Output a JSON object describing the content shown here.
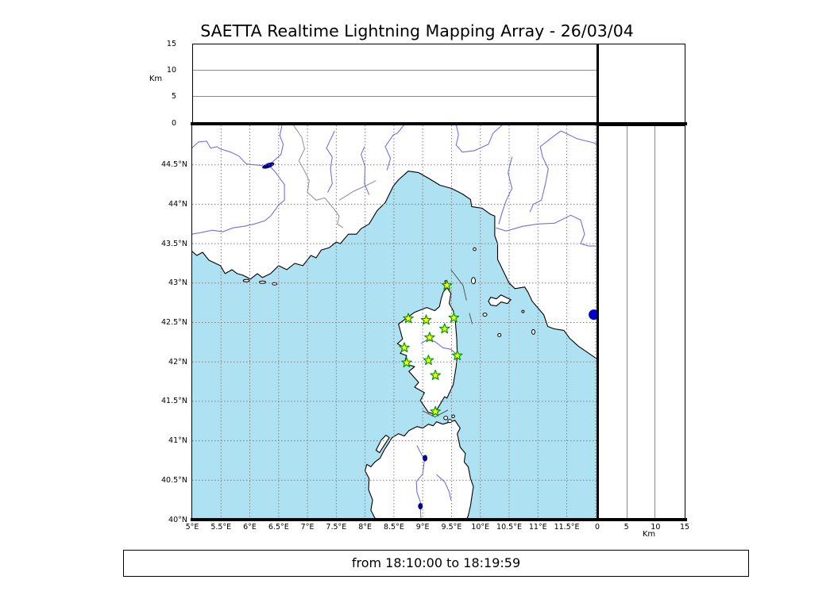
{
  "title": "SAETTA Realtime Lightning Mapping Array - 26/03/04",
  "footer": {
    "text": "from 18:10:00 to 18:19:59"
  },
  "chart_data": {
    "type": "scatter",
    "title": "SAETTA Realtime Lightning Mapping Array - 26/03/04",
    "time_range": "from 18:10:00 to 18:19:59",
    "map_panel": {
      "lon_min": 5.0,
      "lon_max": 12.03,
      "lat_min": 40.0,
      "lat_max": 45.0,
      "lon_tick_values": [
        5,
        5.5,
        6,
        6.5,
        7,
        7.5,
        8,
        8.5,
        9,
        9.5,
        10,
        10.5,
        11,
        11.5
      ],
      "lon_tick_labels": [
        "5°E",
        "5.5°E",
        "6°E",
        "6.5°E",
        "7°E",
        "7.5°E",
        "8°E",
        "8.5°E",
        "9°E",
        "9.5°E",
        "10°E",
        "10.5°E",
        "11°E",
        "11.5°E"
      ],
      "lat_tick_values": [
        40,
        40.5,
        41,
        41.5,
        42,
        42.5,
        43,
        43.5,
        44,
        44.5
      ],
      "lat_tick_labels": [
        "40°N",
        "40.5°N",
        "41°N",
        "41.5°N",
        "42°N",
        "42.5°N",
        "43°N",
        "43.5°N",
        "44°N",
        "44.5°N"
      ],
      "grid_lons": [
        5.5,
        6,
        6.5,
        7,
        7.5,
        8,
        8.5,
        9,
        9.5,
        10,
        10.5,
        11,
        11.5,
        12
      ],
      "grid_lats": [
        40.5,
        41,
        41.5,
        42,
        42.5,
        43,
        43.5,
        44,
        44.5
      ]
    },
    "altitude_panels": {
      "ylabel": "Km",
      "xlabel": "Km",
      "tick_values": [
        0,
        5,
        10,
        15
      ],
      "tick_labels": [
        "0",
        "5",
        "10",
        "15"
      ],
      "range_km": [
        0,
        15
      ],
      "gridlines_km": [
        5,
        10
      ],
      "series": []
    },
    "stations": [
      [
        9.42,
        42.97
      ],
      [
        8.75,
        42.55
      ],
      [
        9.06,
        42.53
      ],
      [
        9.54,
        42.56
      ],
      [
        9.38,
        42.42
      ],
      [
        9.12,
        42.31
      ],
      [
        8.68,
        42.18
      ],
      [
        9.6,
        42.08
      ],
      [
        8.72,
        41.99
      ],
      [
        9.1,
        42.02
      ],
      [
        9.22,
        41.83
      ],
      [
        9.22,
        41.37
      ]
    ],
    "event_point": {
      "lon": 11.97,
      "lat": 42.6,
      "r": 6.5
    }
  },
  "colors": {
    "sea": "#aee1f2",
    "land": "#ffffff",
    "coast": "#000000",
    "river": "#7070e8",
    "border": "#8f8f8f",
    "grid": "#808080",
    "lake": "#000090",
    "route": "#4a4a4a",
    "station_fill": "#ffff00",
    "station_stroke": "#009900",
    "event": "#0000cc",
    "panel_grid": "#8a8a8a"
  },
  "geometry": {
    "land": [
      [
        [
          4.8,
          43.42
        ],
        [
          5.0,
          43.4
        ],
        [
          5.08,
          43.35
        ],
        [
          5.18,
          43.39
        ],
        [
          5.29,
          43.29
        ],
        [
          5.49,
          43.22
        ],
        [
          5.57,
          43.12
        ],
        [
          5.69,
          43.17
        ],
        [
          5.78,
          43.12
        ],
        [
          5.88,
          43.1
        ],
        [
          6.01,
          43.05
        ],
        [
          6.13,
          43.12
        ],
        [
          6.22,
          43.07
        ],
        [
          6.36,
          43.12
        ],
        [
          6.5,
          43.22
        ],
        [
          6.64,
          43.17
        ],
        [
          6.78,
          43.25
        ],
        [
          6.92,
          43.22
        ],
        [
          7.06,
          43.35
        ],
        [
          7.15,
          43.32
        ],
        [
          7.24,
          43.42
        ],
        [
          7.38,
          43.45
        ],
        [
          7.5,
          43.52
        ],
        [
          7.57,
          43.5
        ],
        [
          7.71,
          43.62
        ],
        [
          7.85,
          43.62
        ],
        [
          7.93,
          43.69
        ],
        [
          8.07,
          43.75
        ],
        [
          8.21,
          43.92
        ],
        [
          8.35,
          44.02
        ],
        [
          8.49,
          44.23
        ],
        [
          8.58,
          44.31
        ],
        [
          8.75,
          44.42
        ],
        [
          8.93,
          44.4
        ],
        [
          9.1,
          44.33
        ],
        [
          9.3,
          44.24
        ],
        [
          9.5,
          44.2
        ],
        [
          9.69,
          44.13
        ],
        [
          9.83,
          44.06
        ],
        [
          9.85,
          43.97
        ],
        [
          10.03,
          43.95
        ],
        [
          10.18,
          43.87
        ],
        [
          10.25,
          43.85
        ],
        [
          10.25,
          43.6
        ],
        [
          10.3,
          43.5
        ],
        [
          10.3,
          43.3
        ],
        [
          10.42,
          43.12
        ],
        [
          10.5,
          43.0
        ],
        [
          10.6,
          42.93
        ],
        [
          10.77,
          42.95
        ],
        [
          10.83,
          42.88
        ],
        [
          10.9,
          42.77
        ],
        [
          11.1,
          42.6
        ],
        [
          11.17,
          42.45
        ],
        [
          11.28,
          42.42
        ],
        [
          11.45,
          42.4
        ],
        [
          11.55,
          42.3
        ],
        [
          11.7,
          42.2
        ],
        [
          12.0,
          42.05
        ],
        [
          12.3,
          41.95
        ],
        [
          12.3,
          45.2
        ],
        [
          4.8,
          45.2
        ]
      ],
      [
        [
          9.42,
          42.94
        ],
        [
          9.49,
          42.87
        ],
        [
          9.46,
          42.74
        ],
        [
          9.53,
          42.65
        ],
        [
          9.56,
          42.57
        ],
        [
          9.59,
          42.3
        ],
        [
          9.6,
          42.09
        ],
        [
          9.58,
          41.94
        ],
        [
          9.53,
          41.71
        ],
        [
          9.42,
          41.54
        ],
        [
          9.38,
          41.56
        ],
        [
          9.26,
          41.41
        ],
        [
          9.21,
          41.34
        ],
        [
          9.1,
          41.36
        ],
        [
          8.96,
          41.51
        ],
        [
          9.03,
          41.61
        ],
        [
          8.86,
          41.68
        ],
        [
          8.93,
          41.74
        ],
        [
          8.76,
          41.88
        ],
        [
          8.86,
          41.94
        ],
        [
          8.68,
          41.98
        ],
        [
          8.72,
          42.08
        ],
        [
          8.61,
          42.11
        ],
        [
          8.69,
          42.18
        ],
        [
          8.56,
          42.23
        ],
        [
          8.65,
          42.29
        ],
        [
          8.58,
          42.48
        ],
        [
          8.73,
          42.56
        ],
        [
          8.86,
          42.63
        ],
        [
          9.07,
          42.69
        ],
        [
          9.21,
          42.65
        ],
        [
          9.29,
          42.7
        ],
        [
          9.32,
          42.8
        ],
        [
          9.36,
          42.89
        ]
      ],
      [
        [
          8.19,
          40.0
        ],
        [
          8.17,
          40.02
        ],
        [
          8.1,
          40.12
        ],
        [
          8.13,
          40.25
        ],
        [
          8.06,
          40.38
        ],
        [
          8.07,
          40.52
        ],
        [
          8.0,
          40.62
        ],
        [
          8.03,
          40.7
        ],
        [
          8.1,
          40.67
        ],
        [
          8.17,
          40.73
        ],
        [
          8.26,
          40.78
        ],
        [
          8.33,
          40.88
        ],
        [
          8.4,
          40.96
        ],
        [
          8.47,
          41.04
        ],
        [
          8.58,
          41.09
        ],
        [
          8.68,
          41.06
        ],
        [
          8.76,
          41.13
        ],
        [
          8.9,
          41.18
        ],
        [
          9.0,
          41.16
        ],
        [
          9.1,
          41.21
        ],
        [
          9.18,
          41.19
        ],
        [
          9.24,
          41.24
        ],
        [
          9.35,
          41.21
        ],
        [
          9.44,
          41.23
        ],
        [
          9.56,
          41.26
        ],
        [
          9.65,
          41.16
        ],
        [
          9.6,
          41.09
        ],
        [
          9.65,
          40.92
        ],
        [
          9.74,
          40.84
        ],
        [
          9.72,
          40.73
        ],
        [
          9.79,
          40.67
        ],
        [
          9.83,
          40.52
        ],
        [
          9.88,
          40.42
        ],
        [
          9.83,
          40.18
        ],
        [
          9.79,
          40.05
        ],
        [
          9.76,
          40.0
        ],
        [
          9.76,
          39.8
        ],
        [
          8.19,
          39.8
        ]
      ],
      [
        [
          10.14,
          42.77
        ],
        [
          10.18,
          42.82
        ],
        [
          10.28,
          42.8
        ],
        [
          10.36,
          42.85
        ],
        [
          10.44,
          42.82
        ],
        [
          10.53,
          42.79
        ],
        [
          10.47,
          42.74
        ],
        [
          10.36,
          42.76
        ],
        [
          10.28,
          42.71
        ],
        [
          10.18,
          42.72
        ]
      ],
      [
        [
          8.19,
          40.88
        ],
        [
          8.28,
          41.01
        ],
        [
          8.36,
          41.07
        ],
        [
          8.42,
          41.04
        ],
        [
          8.33,
          40.94
        ],
        [
          8.25,
          40.85
        ]
      ]
    ],
    "island_ellipses": [
      [
        9.88,
        43.03,
        2.5,
        4.0
      ],
      [
        9.9,
        43.43,
        1.8,
        1.8
      ],
      [
        10.08,
        42.6,
        2.5,
        2.0
      ],
      [
        10.33,
        42.34,
        2.0,
        2.0
      ],
      [
        10.74,
        42.64,
        1.5,
        1.5
      ],
      [
        10.92,
        42.38,
        2.0,
        3.0
      ],
      [
        5.94,
        43.03,
        4.0,
        1.5
      ],
      [
        6.22,
        43.01,
        4.0,
        1.5
      ],
      [
        6.43,
        42.99,
        3.0,
        1.5
      ],
      [
        9.4,
        41.29,
        2.5,
        2.2
      ],
      [
        9.47,
        41.25,
        2.5,
        2.0
      ],
      [
        9.53,
        41.31,
        1.8,
        1.8
      ],
      [
        9.4,
        43.02,
        1.2,
        1.2
      ]
    ],
    "rivers": [
      [
        [
          4.99,
          43.62
        ],
        [
          5.15,
          43.64
        ],
        [
          5.35,
          43.67
        ],
        [
          5.53,
          43.65
        ],
        [
          5.71,
          43.7
        ],
        [
          5.9,
          43.72
        ],
        [
          6.08,
          43.75
        ],
        [
          6.26,
          43.79
        ],
        [
          6.36,
          43.85
        ],
        [
          6.5,
          43.99
        ],
        [
          6.6,
          44.05
        ],
        [
          6.6,
          44.25
        ],
        [
          6.43,
          44.42
        ],
        [
          6.32,
          44.5
        ]
      ],
      [
        [
          6.56,
          45.01
        ],
        [
          6.52,
          44.87
        ],
        [
          6.58,
          44.76
        ],
        [
          6.54,
          44.63
        ],
        [
          6.4,
          44.54
        ],
        [
          6.32,
          44.5
        ]
      ],
      [
        [
          4.99,
          44.71
        ],
        [
          5.11,
          44.79
        ],
        [
          5.25,
          44.8
        ],
        [
          5.32,
          44.71
        ],
        [
          5.43,
          44.73
        ],
        [
          5.49,
          44.7
        ],
        [
          5.67,
          44.66
        ],
        [
          5.81,
          44.61
        ],
        [
          5.94,
          44.51
        ],
        [
          6.08,
          44.5
        ],
        [
          6.22,
          44.49
        ]
      ],
      [
        [
          7.47,
          44.93
        ],
        [
          7.33,
          44.71
        ],
        [
          7.43,
          44.6
        ],
        [
          7.4,
          44.45
        ],
        [
          7.43,
          44.26
        ],
        [
          7.35,
          44.15
        ]
      ],
      [
        [
          7.99,
          44.73
        ],
        [
          7.93,
          44.63
        ],
        [
          8.0,
          44.48
        ],
        [
          7.99,
          44.26
        ],
        [
          8.07,
          44.12
        ]
      ],
      [
        [
          8.68,
          45.01
        ],
        [
          8.56,
          44.9
        ],
        [
          8.49,
          44.88
        ],
        [
          8.35,
          44.73
        ],
        [
          8.44,
          44.58
        ],
        [
          8.38,
          44.43
        ]
      ],
      [
        [
          10.39,
          45.01
        ],
        [
          10.22,
          44.9
        ],
        [
          10.14,
          44.76
        ],
        [
          9.9,
          44.68
        ],
        [
          9.69,
          44.66
        ],
        [
          9.58,
          44.75
        ],
        [
          9.62,
          44.88
        ],
        [
          9.58,
          45.01
        ]
      ],
      [
        [
          11.4,
          44.93
        ],
        [
          11.25,
          44.85
        ],
        [
          11.04,
          44.73
        ],
        [
          11.08,
          44.6
        ],
        [
          11.18,
          44.45
        ],
        [
          11.13,
          44.26
        ],
        [
          11.06,
          44.05
        ],
        [
          10.92,
          44.0
        ],
        [
          10.86,
          43.9
        ]
      ],
      [
        [
          11.4,
          44.93
        ],
        [
          11.68,
          44.83
        ],
        [
          11.96,
          44.78
        ],
        [
          12.07,
          44.75
        ]
      ],
      [
        [
          10.55,
          44.6
        ],
        [
          10.48,
          44.4
        ],
        [
          10.55,
          44.2
        ],
        [
          10.45,
          44.05
        ],
        [
          10.38,
          43.9
        ],
        [
          10.32,
          43.75
        ]
      ],
      [
        [
          10.27,
          43.7
        ],
        [
          10.45,
          43.66
        ],
        [
          10.74,
          43.72
        ],
        [
          11.0,
          43.75
        ],
        [
          11.29,
          43.76
        ],
        [
          11.57,
          43.86
        ],
        [
          11.74,
          43.8
        ],
        [
          11.81,
          43.62
        ],
        [
          11.74,
          43.5
        ],
        [
          11.88,
          43.47
        ],
        [
          12.01,
          43.47
        ]
      ],
      [
        [
          8.97,
          42.23
        ],
        [
          9.07,
          42.28
        ],
        [
          9.21,
          42.26
        ],
        [
          9.35,
          42.18
        ],
        [
          9.49,
          42.16
        ],
        [
          9.58,
          42.1
        ]
      ],
      [
        [
          8.9,
          40.94
        ],
        [
          8.97,
          40.84
        ],
        [
          9.03,
          40.76
        ],
        [
          9.0,
          40.58
        ],
        [
          8.89,
          40.48
        ],
        [
          8.9,
          40.35
        ],
        [
          8.97,
          40.2
        ],
        [
          8.96,
          40.12
        ],
        [
          8.97,
          40.01
        ]
      ],
      [
        [
          9.24,
          40.57
        ],
        [
          9.38,
          40.48
        ],
        [
          9.46,
          40.35
        ],
        [
          9.49,
          40.25
        ]
      ]
    ],
    "borders": [
      [
        [
          6.75,
          45.01
        ],
        [
          6.9,
          44.85
        ],
        [
          6.95,
          44.7
        ],
        [
          6.85,
          44.55
        ],
        [
          6.95,
          44.42
        ],
        [
          7.03,
          44.3
        ],
        [
          7.0,
          44.15
        ],
        [
          7.15,
          44.05
        ],
        [
          7.3,
          44.08
        ],
        [
          7.45,
          43.95
        ],
        [
          7.55,
          43.85
        ],
        [
          7.52,
          43.75
        ],
        [
          7.62,
          43.7
        ]
      ],
      [
        [
          7.55,
          44.05
        ],
        [
          7.79,
          44.16
        ],
        [
          8.03,
          44.24
        ],
        [
          8.19,
          44.3
        ]
      ]
    ],
    "lakes": [
      [
        6.32,
        44.49,
        8,
        3,
        -20
      ],
      [
        9.04,
        40.78,
        3,
        4,
        0
      ],
      [
        8.96,
        40.17,
        3,
        4,
        0
      ]
    ],
    "routes": [
      [
        [
          9.49,
          43.17
        ],
        [
          9.7,
          42.97
        ],
        [
          9.76,
          42.78
        ]
      ],
      [
        [
          9.81,
          42.62
        ],
        [
          9.86,
          42.48
        ]
      ],
      [
        [
          9.0,
          41.38
        ],
        [
          9.21,
          41.3
        ],
        [
          9.44,
          41.39
        ]
      ]
    ]
  }
}
